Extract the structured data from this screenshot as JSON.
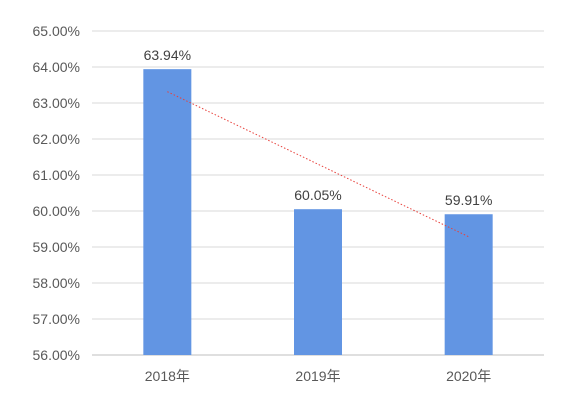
{
  "chart_data": {
    "type": "bar",
    "categories": [
      "2018年",
      "2019年",
      "2020年"
    ],
    "values": [
      63.94,
      60.05,
      59.91
    ],
    "data_labels": [
      "63.94%",
      "60.05%",
      "59.91%"
    ],
    "ylim": [
      56,
      65
    ],
    "yticks": [
      56,
      57,
      58,
      59,
      60,
      61,
      62,
      63,
      64,
      65
    ],
    "ytick_labels": [
      "56.00%",
      "57.00%",
      "58.00%",
      "59.00%",
      "60.00%",
      "61.00%",
      "62.00%",
      "63.00%",
      "64.00%",
      "65.00%"
    ],
    "grid": true,
    "bar_color": "#6295e3",
    "trendline": {
      "type": "linear",
      "style": "dotted",
      "color": "#e8413c"
    },
    "title": "",
    "xlabel": "",
    "ylabel": ""
  }
}
